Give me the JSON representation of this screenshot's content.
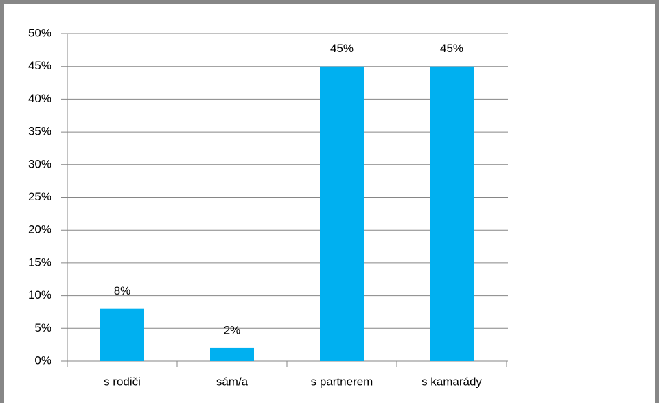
{
  "chart_data": {
    "type": "bar",
    "categories": [
      "s rodiči",
      "sám/a",
      "s partnerem",
      "s kamarády"
    ],
    "values": [
      8,
      2,
      45,
      45
    ],
    "value_labels": [
      "8%",
      "2%",
      "45%",
      "45%"
    ],
    "color": "#00b0f0",
    "ylim": [
      0,
      50
    ],
    "yticks": [
      {
        "value": 0,
        "label": "0%"
      },
      {
        "value": 5,
        "label": "5%"
      },
      {
        "value": 10,
        "label": "10%"
      },
      {
        "value": 15,
        "label": "15%"
      },
      {
        "value": 20,
        "label": "20%"
      },
      {
        "value": 25,
        "label": "25%"
      },
      {
        "value": 30,
        "label": "30%"
      },
      {
        "value": 35,
        "label": "35%"
      },
      {
        "value": 40,
        "label": "40%"
      },
      {
        "value": 45,
        "label": "45%"
      },
      {
        "value": 50,
        "label": "50%"
      }
    ],
    "grid": true
  }
}
